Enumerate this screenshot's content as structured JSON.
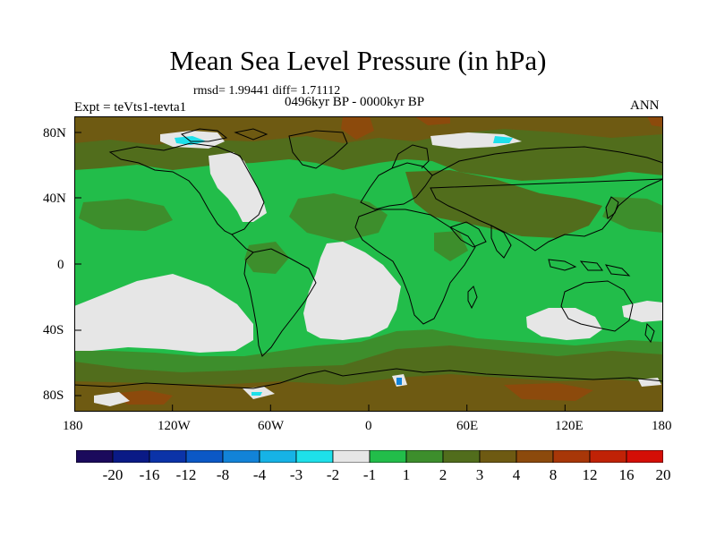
{
  "title": "Mean Sea Level Pressure (in hPa)",
  "stats_line": "rmsd= 1.99441 diff= 1.71112",
  "period_line": "0496kyr BP - 0000kyr BP",
  "experiment_label": "Expt = teVts1-tevta1",
  "season_label": "ANN",
  "map": {
    "x_ticks": [
      "180",
      "120W",
      "60W",
      "0",
      "60E",
      "120E",
      "180"
    ],
    "y_ticks": [
      "80N",
      "40N",
      "0",
      "40S",
      "80S"
    ]
  },
  "colorbar": {
    "colors": [
      "#1b0a5c",
      "#0a1a86",
      "#0b33a8",
      "#0b58c6",
      "#1283d8",
      "#16b3e6",
      "#1ee0ea",
      "#e6e6e6",
      "#22bd4a",
      "#3d8e2c",
      "#516d1c",
      "#6e5a12",
      "#8c4a0c",
      "#a83708",
      "#c02206",
      "#d40e06"
    ],
    "labels": [
      "-20",
      "-16",
      "-12",
      "-8",
      "-4",
      "-3",
      "-2",
      "-1",
      "1",
      "2",
      "3",
      "4",
      "8",
      "12",
      "16",
      "20"
    ]
  },
  "legend_colors": {
    "white": "#e6e6e6",
    "green": "#22bd4a",
    "olive": "#3d8e2c",
    "brown": "#516d1c",
    "dark_brown": "#6e5a12",
    "red": "#c02206",
    "cyan": "#1ee0ea",
    "blue": "#1283d8"
  }
}
